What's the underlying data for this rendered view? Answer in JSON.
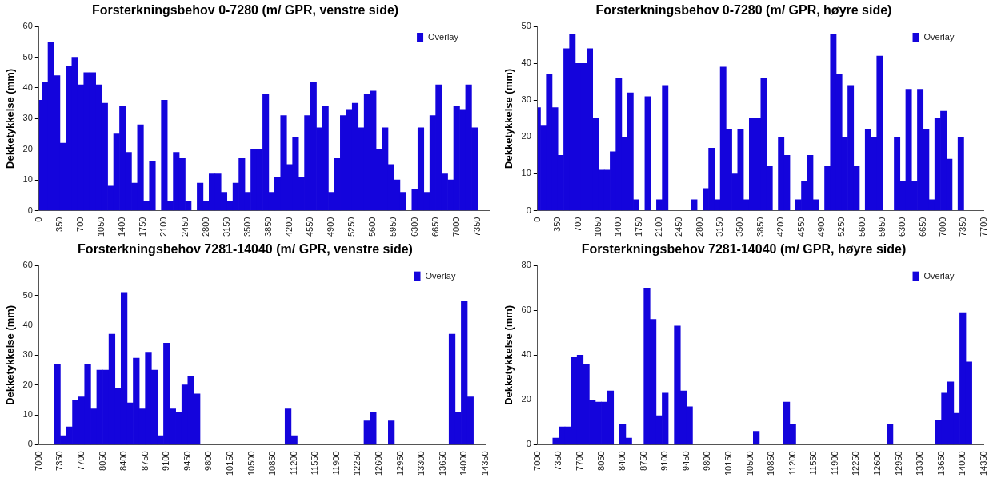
{
  "chart_data": [
    {
      "type": "bar",
      "title": "Forsterkningsbehov 0-7280 (m/ GPR, venstre side)",
      "ylabel": "Dekketykkelse (mm)",
      "legend": "top right",
      "x": [
        0,
        100,
        200,
        300,
        400,
        500,
        600,
        700,
        800,
        900,
        1000,
        1100,
        1200,
        1300,
        1400,
        1500,
        1600,
        1700,
        1800,
        1900,
        2000,
        2100,
        2200,
        2300,
        2400,
        2500,
        2600,
        2700,
        2800,
        2900,
        3000,
        3100,
        3200,
        3300,
        3400,
        3500,
        3600,
        3700,
        3800,
        3900,
        4000,
        4100,
        4200,
        4300,
        4400,
        4500,
        4600,
        4700,
        4800,
        4900,
        5000,
        5100,
        5200,
        5300,
        5400,
        5500,
        5600,
        5700,
        5800,
        5900,
        6000,
        6100,
        6200,
        6300,
        6400,
        6500,
        6600,
        6700,
        6800,
        6900,
        7000,
        7100,
        7200,
        7300
      ],
      "series": [
        {
          "name": "Overlay",
          "color": "#1404dc",
          "values": [
            36,
            42,
            55,
            44,
            22,
            47,
            50,
            41,
            45,
            45,
            41,
            35,
            8,
            25,
            34,
            19,
            9,
            28,
            3,
            16,
            null,
            36,
            3,
            19,
            17,
            3,
            null,
            9,
            3,
            12,
            12,
            6,
            3,
            9,
            17,
            6,
            20,
            20,
            38,
            6,
            11,
            31,
            15,
            24,
            11,
            31,
            42,
            27,
            34,
            6,
            17,
            31,
            33,
            35,
            27,
            38,
            39,
            20,
            27,
            15,
            10,
            6,
            null,
            7,
            27,
            6,
            31,
            41,
            12,
            10,
            34,
            33,
            41,
            27
          ]
        }
      ],
      "xlim": [
        0,
        7540
      ],
      "xticks": [
        0,
        350,
        700,
        1050,
        1400,
        1750,
        2100,
        2450,
        2800,
        3150,
        3500,
        3850,
        4200,
        4550,
        4900,
        5250,
        5600,
        5950,
        6300,
        6650,
        7000,
        7350
      ],
      "ylim": [
        0,
        60
      ],
      "yticks": [
        0,
        10,
        20,
        30,
        40,
        50,
        60
      ]
    },
    {
      "type": "bar",
      "title": "Forsterkningsbehov 0-7280 (m/ GPR, høyre side)",
      "ylabel": "Dekketykkelse (mm)",
      "legend": "top right",
      "x": [
        0,
        100,
        200,
        300,
        400,
        500,
        600,
        700,
        800,
        900,
        1000,
        1100,
        1200,
        1300,
        1400,
        1500,
        1600,
        1700,
        1800,
        1900,
        2000,
        2100,
        2200,
        2300,
        2400,
        2500,
        2600,
        2700,
        2800,
        2900,
        3000,
        3100,
        3200,
        3300,
        3400,
        3500,
        3600,
        3700,
        3800,
        3900,
        4000,
        4100,
        4200,
        4300,
        4400,
        4500,
        4600,
        4700,
        4800,
        4900,
        5000,
        5100,
        5200,
        5300,
        5400,
        5500,
        5600,
        5700,
        5800,
        5900,
        6000,
        6100,
        6200,
        6300,
        6400,
        6500,
        6600,
        6700,
        6800,
        6900,
        7000,
        7100,
        7200,
        7300
      ],
      "series": [
        {
          "name": "Overlay",
          "color": "#1404dc",
          "values": [
            28,
            23,
            37,
            28,
            15,
            44,
            48,
            40,
            40,
            44,
            25,
            11,
            11,
            16,
            36,
            20,
            32,
            3,
            null,
            31,
            null,
            3,
            34,
            null,
            null,
            null,
            null,
            3,
            null,
            6,
            17,
            3,
            39,
            22,
            10,
            22,
            3,
            25,
            25,
            36,
            12,
            null,
            20,
            15,
            null,
            3,
            8,
            15,
            3,
            null,
            12,
            48,
            37,
            20,
            34,
            12,
            null,
            22,
            20,
            42,
            null,
            null,
            20,
            8,
            33,
            8,
            33,
            22,
            3,
            25,
            27,
            14,
            null,
            20
          ]
        }
      ],
      "xlim": [
        0,
        7700
      ],
      "xticks": [
        0,
        350,
        700,
        1050,
        1400,
        1750,
        2100,
        2450,
        2800,
        3150,
        3500,
        3850,
        4200,
        4550,
        4900,
        5250,
        5600,
        5950,
        6300,
        6650,
        7000,
        7350,
        7700
      ],
      "ylim": [
        0,
        50
      ],
      "yticks": [
        0,
        10,
        20,
        30,
        40,
        50
      ]
    },
    {
      "type": "bar",
      "title": "Forsterkningsbehov 7281-14040 (m/ GPR, venstre side)",
      "ylabel": "Dekketykkelse (mm)",
      "legend": "top right",
      "x": [
        7300,
        7400,
        7500,
        7600,
        7700,
        7800,
        7900,
        8000,
        8100,
        8200,
        8300,
        8400,
        8500,
        8600,
        8700,
        8800,
        8900,
        9000,
        9100,
        9200,
        9300,
        9400,
        9500,
        9600,
        9700,
        9800,
        9900,
        10000,
        10100,
        10200,
        10300,
        10400,
        10500,
        10600,
        10700,
        10800,
        10900,
        11000,
        11100,
        11200,
        11300,
        11400,
        11500,
        11600,
        11700,
        11800,
        11900,
        12000,
        12100,
        12200,
        12300,
        12400,
        12500,
        12600,
        12700,
        12800,
        12900,
        13000,
        13100,
        13200,
        13300,
        13400,
        13500,
        13600,
        13700,
        13800,
        13900,
        14000,
        14100
      ],
      "series": [
        {
          "name": "Overlay",
          "color": "#1404dc",
          "values": [
            27,
            3,
            6,
            15,
            16,
            27,
            12,
            25,
            25,
            37,
            19,
            51,
            14,
            29,
            12,
            31,
            25,
            3,
            34,
            12,
            11,
            20,
            23,
            17,
            null,
            null,
            null,
            null,
            null,
            null,
            null,
            null,
            null,
            null,
            null,
            null,
            null,
            null,
            12,
            3,
            null,
            null,
            null,
            null,
            null,
            null,
            null,
            null,
            null,
            null,
            null,
            8,
            11,
            null,
            null,
            8,
            null,
            null,
            null,
            null,
            null,
            null,
            null,
            null,
            null,
            37,
            11,
            48,
            16
          ]
        }
      ],
      "xlim": [
        7000,
        14350
      ],
      "xticks": [
        7000,
        7350,
        7700,
        8050,
        8400,
        8750,
        9100,
        9450,
        9800,
        10150,
        10500,
        10850,
        11200,
        11550,
        11900,
        12250,
        12600,
        12950,
        13300,
        13650,
        14000,
        14350
      ],
      "ylim": [
        0,
        60
      ],
      "yticks": [
        0,
        10,
        20,
        30,
        40,
        50,
        60
      ]
    },
    {
      "type": "bar",
      "title": "Forsterkningsbehov 7281-14040 (m/ GPR, høyre side)",
      "ylabel": "Dekketykkelse (mm)",
      "legend": "top right",
      "x": [
        7300,
        7400,
        7500,
        7600,
        7700,
        7800,
        7900,
        8000,
        8100,
        8200,
        8300,
        8400,
        8500,
        8600,
        8700,
        8800,
        8900,
        9000,
        9100,
        9200,
        9300,
        9400,
        9500,
        9600,
        9700,
        9800,
        9900,
        10000,
        10100,
        10200,
        10300,
        10400,
        10500,
        10600,
        10700,
        10800,
        10900,
        11000,
        11100,
        11200,
        11300,
        11400,
        11500,
        11600,
        11700,
        11800,
        11900,
        12000,
        12100,
        12200,
        12300,
        12400,
        12500,
        12600,
        12700,
        12800,
        12900,
        13000,
        13100,
        13200,
        13300,
        13400,
        13500,
        13600,
        13700,
        13800,
        13900,
        14000,
        14100
      ],
      "series": [
        {
          "name": "Overlay",
          "color": "#1404dc",
          "values": [
            3,
            8,
            8,
            39,
            40,
            36,
            20,
            19,
            19,
            24,
            null,
            9,
            3,
            null,
            null,
            70,
            56,
            13,
            23,
            null,
            53,
            24,
            17,
            null,
            null,
            null,
            null,
            null,
            null,
            null,
            null,
            null,
            null,
            6,
            null,
            null,
            null,
            null,
            19,
            9,
            null,
            null,
            null,
            null,
            null,
            null,
            null,
            null,
            null,
            null,
            null,
            null,
            null,
            null,
            null,
            9,
            null,
            null,
            null,
            null,
            null,
            null,
            null,
            11,
            23,
            28,
            14,
            59,
            37
          ]
        }
      ],
      "xlim": [
        7000,
        14350
      ],
      "xticks": [
        7000,
        7350,
        7700,
        8050,
        8400,
        8750,
        9100,
        9450,
        9800,
        10150,
        10500,
        10850,
        11200,
        11550,
        11900,
        12250,
        12600,
        12950,
        13300,
        13650,
        14000,
        14350
      ],
      "ylim": [
        0,
        80
      ],
      "yticks": [
        0,
        20,
        40,
        60,
        80
      ]
    }
  ]
}
